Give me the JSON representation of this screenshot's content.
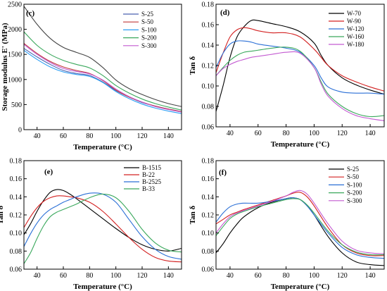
{
  "chart_data": [
    {
      "id": "c",
      "panel_label": "(c)",
      "type": "line",
      "xlabel": "Temperature (°C)",
      "ylabel": "Storage modulus E' (MPa)",
      "xlim": [
        30,
        150
      ],
      "ylim": [
        0,
        2500
      ],
      "xticks": [
        40,
        60,
        80,
        100,
        120,
        140
      ],
      "yticks": [
        0,
        500,
        1000,
        1500,
        2000,
        2500
      ],
      "grid": false,
      "legend_position": "top-right",
      "series": [
        {
          "name": "S-25",
          "color": "#4a62b0",
          "x": [
            30,
            40,
            50,
            60,
            70,
            80,
            90,
            100,
            110,
            120,
            130,
            140,
            150
          ],
          "y": [
            1620,
            1450,
            1300,
            1180,
            1120,
            1080,
            950,
            780,
            650,
            540,
            470,
            410,
            360
          ]
        },
        {
          "name": "S-50",
          "color": "#c03a3a",
          "x": [
            30,
            40,
            50,
            60,
            70,
            80,
            90,
            100,
            110,
            120,
            130,
            140,
            150
          ],
          "y": [
            1720,
            1520,
            1360,
            1250,
            1180,
            1120,
            980,
            790,
            650,
            550,
            470,
            410,
            360
          ]
        },
        {
          "name": "S-100",
          "color": "#2a9df4",
          "x": [
            30,
            40,
            50,
            60,
            70,
            80,
            90,
            100,
            110,
            120,
            130,
            140,
            150
          ],
          "y": [
            1580,
            1400,
            1250,
            1150,
            1100,
            1060,
            940,
            760,
            620,
            510,
            430,
            370,
            320
          ]
        },
        {
          "name": "S-200",
          "color": "#3aa85c",
          "x": [
            30,
            40,
            50,
            60,
            70,
            80,
            90,
            100,
            110,
            120,
            130,
            140,
            150
          ],
          "y": [
            1950,
            1680,
            1500,
            1380,
            1300,
            1230,
            1080,
            880,
            730,
            610,
            520,
            450,
            390
          ]
        },
        {
          "name": "S-300",
          "color": "#c35ad1",
          "x": [
            30,
            40,
            50,
            60,
            70,
            80,
            90,
            100,
            110,
            120,
            130,
            140,
            150
          ],
          "y": [
            1700,
            1500,
            1340,
            1220,
            1160,
            1110,
            990,
            810,
            660,
            550,
            460,
            400,
            350
          ]
        },
        {
          "name": "",
          "color": "#444444",
          "x": [
            30,
            40,
            50,
            60,
            70,
            80,
            90,
            100,
            110,
            120,
            130,
            140,
            150
          ],
          "y": [
            2460,
            2100,
            1820,
            1640,
            1540,
            1440,
            1240,
            990,
            820,
            700,
            600,
            520,
            460
          ]
        }
      ]
    },
    {
      "id": "d",
      "panel_label": "(d)",
      "type": "line",
      "xlabel": "Temperature (°C)",
      "ylabel": "Tan δ",
      "xlim": [
        30,
        150
      ],
      "ylim": [
        0.06,
        0.18
      ],
      "xticks": [
        40,
        60,
        80,
        100,
        120,
        140
      ],
      "yticks": [
        0.06,
        0.08,
        0.1,
        0.12,
        0.14,
        0.16,
        0.18
      ],
      "grid": false,
      "legend_position": "top-right",
      "series": [
        {
          "name": "W-70",
          "color": "#000000",
          "x": [
            30,
            35,
            40,
            45,
            50,
            55,
            60,
            70,
            80,
            90,
            100,
            105,
            110,
            120,
            130,
            140,
            150
          ],
          "y": [
            0.075,
            0.1,
            0.128,
            0.148,
            0.158,
            0.164,
            0.164,
            0.161,
            0.158,
            0.153,
            0.142,
            0.13,
            0.12,
            0.108,
            0.101,
            0.096,
            0.092
          ]
        },
        {
          "name": "W-90",
          "color": "#d32020",
          "x": [
            30,
            35,
            40,
            45,
            50,
            55,
            60,
            70,
            80,
            90,
            100,
            105,
            110,
            120,
            130,
            140,
            150
          ],
          "y": [
            0.113,
            0.132,
            0.148,
            0.155,
            0.157,
            0.156,
            0.154,
            0.152,
            0.152,
            0.148,
            0.136,
            0.128,
            0.12,
            0.11,
            0.104,
            0.099,
            0.095
          ]
        },
        {
          "name": "W-120",
          "color": "#2a6fd6",
          "x": [
            30,
            35,
            40,
            45,
            50,
            55,
            60,
            70,
            80,
            90,
            100,
            105,
            110,
            120,
            130,
            140,
            150
          ],
          "y": [
            0.118,
            0.132,
            0.141,
            0.144,
            0.144,
            0.143,
            0.141,
            0.139,
            0.137,
            0.133,
            0.12,
            0.108,
            0.099,
            0.094,
            0.093,
            0.093,
            0.092
          ]
        },
        {
          "name": "W-160",
          "color": "#3aa85c",
          "x": [
            30,
            35,
            40,
            45,
            50,
            55,
            60,
            70,
            80,
            90,
            100,
            105,
            110,
            120,
            130,
            140,
            150
          ],
          "y": [
            0.11,
            0.118,
            0.125,
            0.13,
            0.133,
            0.134,
            0.135,
            0.137,
            0.138,
            0.134,
            0.118,
            0.104,
            0.092,
            0.08,
            0.073,
            0.07,
            0.071
          ]
        },
        {
          "name": "W-180",
          "color": "#c35ad1",
          "x": [
            30,
            35,
            40,
            45,
            50,
            55,
            60,
            70,
            80,
            90,
            100,
            105,
            110,
            120,
            130,
            140,
            150
          ],
          "y": [
            0.11,
            0.117,
            0.121,
            0.124,
            0.126,
            0.128,
            0.129,
            0.131,
            0.133,
            0.132,
            0.118,
            0.102,
            0.09,
            0.078,
            0.071,
            0.068,
            0.066
          ]
        }
      ]
    },
    {
      "id": "e",
      "panel_label": "(e)",
      "type": "line",
      "xlabel": "Temperature (°C)",
      "ylabel": "Tan δ",
      "xlim": [
        30,
        150
      ],
      "ylim": [
        0.06,
        0.18
      ],
      "xticks": [
        40,
        60,
        80,
        100,
        120,
        140
      ],
      "yticks": [
        0.06,
        0.08,
        0.1,
        0.12,
        0.14,
        0.16,
        0.18
      ],
      "grid": false,
      "legend_position": "top-right",
      "series": [
        {
          "name": "B-1515",
          "color": "#000000",
          "x": [
            30,
            35,
            40,
            45,
            50,
            55,
            60,
            65,
            70,
            80,
            90,
            100,
            110,
            120,
            130,
            140,
            150
          ],
          "y": [
            0.098,
            0.11,
            0.124,
            0.136,
            0.145,
            0.148,
            0.147,
            0.143,
            0.138,
            0.127,
            0.116,
            0.105,
            0.095,
            0.087,
            0.082,
            0.08,
            0.083
          ]
        },
        {
          "name": "B-22",
          "color": "#d32020",
          "x": [
            30,
            35,
            40,
            45,
            50,
            55,
            60,
            65,
            70,
            80,
            90,
            100,
            110,
            120,
            130,
            140,
            150
          ],
          "y": [
            0.106,
            0.118,
            0.128,
            0.135,
            0.139,
            0.141,
            0.141,
            0.14,
            0.139,
            0.134,
            0.124,
            0.11,
            0.095,
            0.082,
            0.073,
            0.069,
            0.068
          ]
        },
        {
          "name": "B-2525",
          "color": "#2a6fd6",
          "x": [
            30,
            35,
            40,
            45,
            50,
            55,
            60,
            65,
            70,
            80,
            90,
            100,
            110,
            120,
            130,
            140,
            150
          ],
          "y": [
            0.085,
            0.099,
            0.111,
            0.12,
            0.126,
            0.13,
            0.134,
            0.137,
            0.14,
            0.144,
            0.143,
            0.134,
            0.115,
            0.096,
            0.082,
            0.074,
            0.071
          ]
        },
        {
          "name": "B-33",
          "color": "#3aa85c",
          "x": [
            30,
            35,
            40,
            45,
            50,
            55,
            60,
            65,
            70,
            80,
            90,
            100,
            110,
            120,
            130,
            140,
            150
          ],
          "y": [
            0.066,
            0.078,
            0.094,
            0.108,
            0.118,
            0.123,
            0.126,
            0.129,
            0.132,
            0.139,
            0.143,
            0.139,
            0.124,
            0.104,
            0.089,
            0.081,
            0.079
          ]
        }
      ]
    },
    {
      "id": "f",
      "panel_label": "(f)",
      "type": "line",
      "xlabel": "Temperature (°C)",
      "ylabel": "Tan δ",
      "xlim": [
        30,
        150
      ],
      "ylim": [
        0.06,
        0.18
      ],
      "xticks": [
        40,
        60,
        80,
        100,
        120,
        140
      ],
      "yticks": [
        0.06,
        0.08,
        0.1,
        0.12,
        0.14,
        0.16,
        0.18
      ],
      "grid": false,
      "legend_position": "top-right",
      "series": [
        {
          "name": "S-25",
          "color": "#000000",
          "x": [
            30,
            35,
            40,
            45,
            50,
            60,
            70,
            80,
            85,
            90,
            95,
            100,
            110,
            120,
            130,
            140,
            150
          ],
          "y": [
            0.078,
            0.088,
            0.1,
            0.11,
            0.118,
            0.128,
            0.134,
            0.138,
            0.139,
            0.137,
            0.13,
            0.12,
            0.096,
            0.078,
            0.068,
            0.065,
            0.064
          ]
        },
        {
          "name": "S-50",
          "color": "#d32020",
          "x": [
            30,
            35,
            40,
            45,
            50,
            60,
            70,
            80,
            85,
            90,
            95,
            100,
            110,
            120,
            130,
            140,
            150
          ],
          "y": [
            0.11,
            0.115,
            0.12,
            0.123,
            0.126,
            0.131,
            0.136,
            0.141,
            0.144,
            0.145,
            0.14,
            0.13,
            0.106,
            0.087,
            0.078,
            0.075,
            0.075
          ]
        },
        {
          "name": "S-100",
          "color": "#2a6fd6",
          "x": [
            30,
            35,
            40,
            45,
            50,
            60,
            70,
            80,
            85,
            90,
            95,
            100,
            110,
            120,
            130,
            140,
            150
          ],
          "y": [
            0.112,
            0.122,
            0.129,
            0.132,
            0.133,
            0.133,
            0.135,
            0.138,
            0.139,
            0.137,
            0.13,
            0.12,
            0.1,
            0.084,
            0.076,
            0.073,
            0.072
          ]
        },
        {
          "name": "S-200",
          "color": "#3aa85c",
          "x": [
            30,
            35,
            40,
            45,
            50,
            60,
            70,
            80,
            85,
            90,
            95,
            100,
            110,
            120,
            130,
            140,
            150
          ],
          "y": [
            0.097,
            0.107,
            0.116,
            0.121,
            0.124,
            0.129,
            0.133,
            0.137,
            0.138,
            0.137,
            0.131,
            0.122,
            0.102,
            0.087,
            0.079,
            0.076,
            0.076
          ]
        },
        {
          "name": "S-300",
          "color": "#c35ad1",
          "x": [
            30,
            35,
            40,
            45,
            50,
            60,
            70,
            80,
            85,
            90,
            95,
            100,
            110,
            120,
            130,
            140,
            150
          ],
          "y": [
            0.1,
            0.11,
            0.118,
            0.122,
            0.125,
            0.13,
            0.135,
            0.141,
            0.145,
            0.147,
            0.143,
            0.133,
            0.11,
            0.091,
            0.081,
            0.078,
            0.077
          ]
        }
      ]
    }
  ]
}
